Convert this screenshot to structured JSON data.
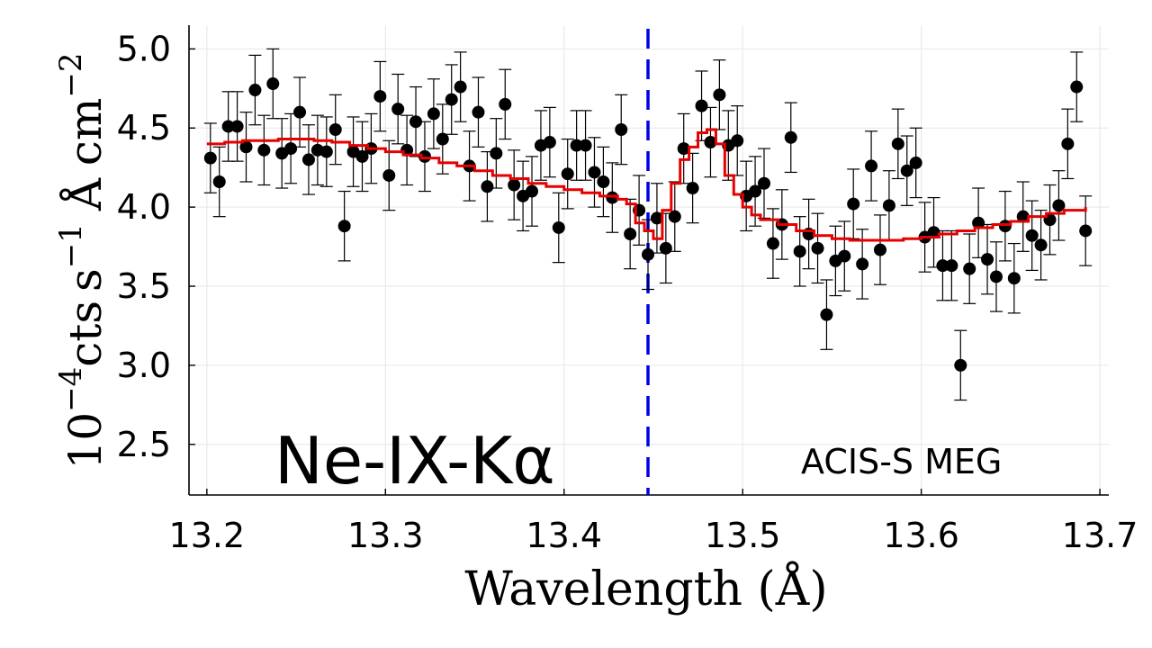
{
  "chart_data": {
    "type": "scatter",
    "title": "",
    "xlabel": "Wavelength (Å)",
    "ylabel": "10^-4 cts s^-1 Å cm^-2",
    "ylabel_parts": {
      "scale": "10",
      "scale_exp": "−4",
      "cts": "cts",
      "s": "s",
      "s_exp": "−1",
      "ang": "Å",
      "cm": "cm",
      "cm_exp": "−2"
    },
    "xlim": [
      13.19,
      13.705
    ],
    "ylim": [
      2.18,
      5.15
    ],
    "xticks": [
      13.2,
      13.3,
      13.4,
      13.5,
      13.6,
      13.7
    ],
    "yticks": [
      2.5,
      3.0,
      3.5,
      4.0,
      4.5,
      5.0
    ],
    "xtick_labels": [
      "13.2",
      "13.3",
      "13.4",
      "13.5",
      "13.6",
      "13.7"
    ],
    "ytick_labels": [
      "2.5",
      "3.0",
      "3.5",
      "4.0",
      "4.5",
      "5.0"
    ],
    "grid": true,
    "annotations": {
      "line_label": "Ne-IX-Kα",
      "instrument": "ACIS-S MEG"
    },
    "reference_line": {
      "x": 13.447,
      "style": "dashed",
      "color": "#0000e6"
    },
    "colors": {
      "data": "#000000",
      "model": "#e60000",
      "reference": "#0000e6"
    },
    "series": [
      {
        "name": "data",
        "kind": "points_with_errorbars",
        "error": 0.22,
        "x": [
          13.202,
          13.207,
          13.212,
          13.217,
          13.222,
          13.227,
          13.232,
          13.237,
          13.242,
          13.247,
          13.252,
          13.257,
          13.262,
          13.267,
          13.272,
          13.277,
          13.282,
          13.287,
          13.292,
          13.297,
          13.302,
          13.307,
          13.312,
          13.317,
          13.322,
          13.327,
          13.332,
          13.337,
          13.342,
          13.347,
          13.352,
          13.357,
          13.362,
          13.367,
          13.372,
          13.377,
          13.382,
          13.387,
          13.392,
          13.397,
          13.402,
          13.407,
          13.412,
          13.417,
          13.422,
          13.427,
          13.432,
          13.437,
          13.442,
          13.447,
          13.452,
          13.457,
          13.462,
          13.467,
          13.472,
          13.477,
          13.482,
          13.487,
          13.492,
          13.497,
          13.502,
          13.507,
          13.512,
          13.517,
          13.522,
          13.527,
          13.532,
          13.537,
          13.542,
          13.547,
          13.552,
          13.557,
          13.562,
          13.567,
          13.572,
          13.577,
          13.582,
          13.587,
          13.592,
          13.597,
          13.602,
          13.607,
          13.612,
          13.617,
          13.622,
          13.627,
          13.632,
          13.637,
          13.642,
          13.647,
          13.652,
          13.657,
          13.662,
          13.667,
          13.672,
          13.677,
          13.682,
          13.687,
          13.692
        ],
        "y": [
          4.31,
          4.16,
          4.51,
          4.51,
          4.38,
          4.74,
          4.36,
          4.78,
          4.34,
          4.37,
          4.6,
          4.3,
          4.36,
          4.35,
          4.49,
          3.88,
          4.35,
          4.32,
          4.37,
          4.7,
          4.2,
          4.62,
          4.36,
          4.54,
          4.32,
          4.59,
          4.43,
          4.68,
          4.76,
          4.26,
          4.6,
          4.13,
          4.34,
          4.65,
          4.14,
          4.07,
          4.1,
          4.39,
          4.41,
          3.87,
          4.21,
          4.39,
          4.39,
          4.22,
          4.16,
          4.06,
          4.49,
          3.83,
          3.98,
          3.7,
          3.93,
          3.74,
          3.94,
          4.37,
          4.12,
          4.64,
          4.41,
          4.71,
          4.39,
          4.42,
          4.07,
          4.1,
          4.15,
          3.77,
          3.89,
          4.44,
          3.72,
          3.83,
          3.74,
          3.32,
          3.66,
          3.69,
          4.02,
          3.64,
          4.26,
          3.73,
          4.01,
          4.4,
          4.23,
          4.28,
          3.81,
          3.84,
          3.63,
          3.63,
          3.0,
          3.61,
          3.9,
          3.67,
          3.56,
          3.88,
          3.55,
          3.94,
          3.82,
          3.76,
          3.92,
          4.01,
          4.4,
          4.76,
          3.85
        ]
      },
      {
        "name": "model",
        "kind": "step_line",
        "x": [
          13.2,
          13.21,
          13.22,
          13.23,
          13.24,
          13.25,
          13.26,
          13.27,
          13.28,
          13.29,
          13.3,
          13.31,
          13.32,
          13.33,
          13.34,
          13.35,
          13.36,
          13.37,
          13.38,
          13.39,
          13.4,
          13.41,
          13.42,
          13.43,
          13.435,
          13.44,
          13.445,
          13.45,
          13.455,
          13.46,
          13.465,
          13.47,
          13.475,
          13.48,
          13.485,
          13.49,
          13.495,
          13.5,
          13.505,
          13.51,
          13.52,
          13.53,
          13.54,
          13.55,
          13.56,
          13.57,
          13.58,
          13.59,
          13.6,
          13.61,
          13.62,
          13.63,
          13.64,
          13.65,
          13.66,
          13.67,
          13.68,
          13.692
        ],
        "y": [
          4.4,
          4.41,
          4.42,
          4.42,
          4.43,
          4.43,
          4.42,
          4.41,
          4.39,
          4.37,
          4.35,
          4.33,
          4.31,
          4.28,
          4.26,
          4.23,
          4.2,
          4.18,
          4.15,
          4.13,
          4.11,
          4.09,
          4.07,
          4.05,
          4.02,
          3.9,
          3.85,
          3.8,
          3.98,
          4.15,
          4.3,
          4.38,
          4.47,
          4.49,
          4.4,
          4.2,
          4.08,
          4.0,
          3.95,
          3.92,
          3.89,
          3.85,
          3.82,
          3.8,
          3.79,
          3.79,
          3.79,
          3.8,
          3.81,
          3.83,
          3.85,
          3.87,
          3.89,
          3.91,
          3.94,
          3.96,
          3.98,
          4.0
        ]
      }
    ]
  }
}
